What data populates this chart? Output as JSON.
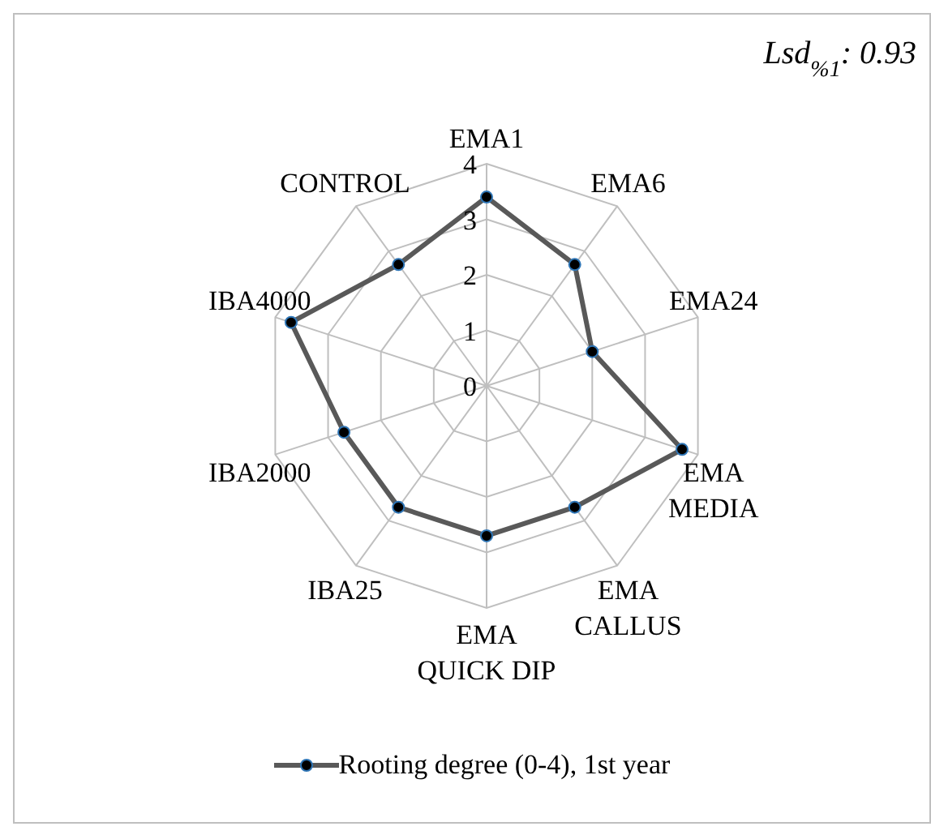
{
  "chart_data": {
    "type": "radar",
    "categories": [
      "EMA1",
      "EMA6",
      "EMA24",
      "EMA MEDIA",
      "EMA CALLUS",
      "EMA QUICK DIP",
      "IBA25",
      "IBA2000",
      "IBA4000",
      "CONTROL"
    ],
    "series": [
      {
        "name": "Rooting degree (0-4), 1st year",
        "color": "#595959",
        "values": [
          3.4,
          2.7,
          2.0,
          3.7,
          2.7,
          2.7,
          2.7,
          2.7,
          3.7,
          2.7
        ]
      }
    ],
    "ylim": [
      0,
      4
    ],
    "yticks": [
      0,
      1,
      2,
      3,
      4
    ],
    "grid": true,
    "legend": "bottom",
    "marker": "circle",
    "annotations": [
      "Lsd$_{%1}$: 0.93"
    ]
  }
}
